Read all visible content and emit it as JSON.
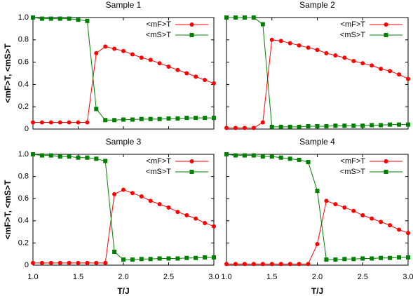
{
  "chart_data": [
    {
      "type": "line",
      "title": "Sample 1",
      "ylabel": "<mF>T, <mS>T",
      "legend": "upper right",
      "x": [
        1.0,
        1.1,
        1.2,
        1.3,
        1.4,
        1.5,
        1.6,
        1.7,
        1.8,
        1.9,
        2.0,
        2.1,
        2.2,
        2.3,
        2.4,
        2.5,
        2.6,
        2.7,
        2.8,
        2.9,
        3.0
      ],
      "series": [
        {
          "name": "<mF>T",
          "color": "#ff0000",
          "marker": "circle",
          "values": [
            0.06,
            0.06,
            0.06,
            0.06,
            0.06,
            0.06,
            0.06,
            0.68,
            0.74,
            0.72,
            0.7,
            0.67,
            0.64,
            0.62,
            0.59,
            0.56,
            0.53,
            0.5,
            0.47,
            0.44,
            0.41
          ]
        },
        {
          "name": "<mS>T",
          "color": "#008000",
          "marker": "square",
          "values": [
            1.0,
            0.99,
            0.99,
            0.99,
            0.99,
            0.98,
            0.97,
            0.18,
            0.08,
            0.08,
            0.085,
            0.085,
            0.09,
            0.09,
            0.09,
            0.095,
            0.095,
            0.1,
            0.1,
            0.1,
            0.1
          ]
        }
      ],
      "xlim": [
        1.0,
        3.0
      ],
      "xticks": [
        {
          "value": 1.0,
          "label": "1.0"
        },
        {
          "value": 1.5,
          "label": "1.5"
        },
        {
          "value": 2.0,
          "label": "2.0"
        },
        {
          "value": 2.5,
          "label": "2.5"
        },
        {
          "value": 3.0,
          "label": "3.0"
        }
      ],
      "ylim": [
        0,
        1.0
      ],
      "yticks": [
        0,
        0.2,
        0.4,
        0.6,
        0.8,
        {
          "value": 1.0,
          "label": "1.0"
        }
      ]
    },
    {
      "type": "line",
      "title": "Sample 2",
      "legend": "upper right",
      "x": [
        1.0,
        1.1,
        1.2,
        1.3,
        1.4,
        1.5,
        1.6,
        1.7,
        1.8,
        1.9,
        2.0,
        2.1,
        2.2,
        2.3,
        2.4,
        2.5,
        2.6,
        2.7,
        2.8,
        2.9,
        3.0
      ],
      "series": [
        {
          "name": "<mF>T",
          "color": "#ff0000",
          "marker": "circle",
          "values": [
            0.01,
            0.01,
            0.01,
            0.01,
            0.06,
            0.8,
            0.79,
            0.77,
            0.75,
            0.73,
            0.71,
            0.68,
            0.66,
            0.64,
            0.61,
            0.59,
            0.57,
            0.54,
            0.52,
            0.49,
            0.45
          ]
        },
        {
          "name": "<mS>T",
          "color": "#008000",
          "marker": "square",
          "values": [
            1.0,
            1.0,
            1.0,
            1.0,
            0.94,
            0.02,
            0.02,
            0.02,
            0.02,
            0.025,
            0.025,
            0.025,
            0.03,
            0.03,
            0.03,
            0.03,
            0.035,
            0.035,
            0.04,
            0.04,
            0.04
          ]
        }
      ],
      "xlim": [
        1.0,
        3.0
      ],
      "xticks": [
        {
          "value": 1.0,
          "label": "1.0"
        },
        {
          "value": 1.5,
          "label": "1.5"
        },
        {
          "value": 2.0,
          "label": "2.0"
        },
        {
          "value": 2.5,
          "label": "2.5"
        },
        {
          "value": 3.0,
          "label": "3.0"
        }
      ],
      "ylim": [
        0,
        1.0
      ],
      "yticks": [
        0,
        0.2,
        0.4,
        0.6,
        0.8,
        {
          "value": 1.0,
          "label": "1.0"
        }
      ]
    },
    {
      "type": "line",
      "title": "Sample 3",
      "ylabel": "<mF>T, <mS>T",
      "xlabel": "T/J",
      "legend": "upper right",
      "x": [
        1.0,
        1.1,
        1.2,
        1.3,
        1.4,
        1.5,
        1.6,
        1.7,
        1.8,
        1.9,
        2.0,
        2.1,
        2.2,
        2.3,
        2.4,
        2.5,
        2.6,
        2.7,
        2.8,
        2.9,
        3.0
      ],
      "series": [
        {
          "name": "<mF>T",
          "color": "#ff0000",
          "marker": "circle",
          "values": [
            0.02,
            0.02,
            0.02,
            0.02,
            0.02,
            0.02,
            0.02,
            0.02,
            0.02,
            0.64,
            0.68,
            0.65,
            0.62,
            0.58,
            0.55,
            0.52,
            0.48,
            0.45,
            0.42,
            0.38,
            0.35
          ]
        },
        {
          "name": "<mS>T",
          "color": "#008000",
          "marker": "square",
          "values": [
            1.0,
            0.99,
            0.99,
            0.98,
            0.98,
            0.97,
            0.97,
            0.96,
            0.94,
            0.12,
            0.05,
            0.05,
            0.055,
            0.055,
            0.06,
            0.06,
            0.06,
            0.065,
            0.065,
            0.07,
            0.07
          ]
        }
      ],
      "xlim": [
        1.0,
        3.0
      ],
      "xticks": [
        {
          "value": 1.0,
          "label": "1.0"
        },
        {
          "value": 1.5,
          "label": "1.5"
        },
        {
          "value": 2.0,
          "label": "2.0"
        },
        {
          "value": 2.5,
          "label": "2.5"
        },
        {
          "value": 3.0,
          "label": "3.0"
        }
      ],
      "ylim": [
        0,
        1.0
      ],
      "yticks": [
        0,
        0.2,
        0.4,
        0.6,
        0.8,
        {
          "value": 1.0,
          "label": "1.0"
        }
      ]
    },
    {
      "type": "line",
      "title": "Sample 4",
      "xlabel": "T/J",
      "legend": "upper right",
      "x": [
        1.0,
        1.1,
        1.2,
        1.3,
        1.4,
        1.5,
        1.6,
        1.7,
        1.8,
        1.9,
        2.0,
        2.1,
        2.2,
        2.3,
        2.4,
        2.5,
        2.6,
        2.7,
        2.8,
        2.9,
        3.0
      ],
      "series": [
        {
          "name": "<mF>T",
          "color": "#ff0000",
          "marker": "circle",
          "values": [
            0.01,
            0.01,
            0.01,
            0.01,
            0.01,
            0.01,
            0.01,
            0.01,
            0.01,
            0.01,
            0.19,
            0.58,
            0.55,
            0.52,
            0.49,
            0.45,
            0.42,
            0.39,
            0.36,
            0.32,
            0.29
          ]
        },
        {
          "name": "<mS>T",
          "color": "#008000",
          "marker": "square",
          "values": [
            1.0,
            0.99,
            0.99,
            0.99,
            0.98,
            0.98,
            0.97,
            0.96,
            0.95,
            0.93,
            0.67,
            0.05,
            0.05,
            0.055,
            0.055,
            0.06,
            0.06,
            0.065,
            0.065,
            0.07,
            0.07
          ]
        }
      ],
      "xlim": [
        1.0,
        3.0
      ],
      "xticks": [
        {
          "value": 1.0,
          "label": "1.0"
        },
        {
          "value": 1.5,
          "label": "1.5"
        },
        {
          "value": 2.0,
          "label": "2.0"
        },
        {
          "value": 2.5,
          "label": "2.5"
        },
        {
          "value": 3.0,
          "label": "3.0"
        }
      ],
      "ylim": [
        0,
        1.0
      ],
      "yticks": [
        0,
        0.2,
        0.4,
        0.6,
        0.8,
        {
          "value": 1.0,
          "label": "1.0"
        }
      ]
    }
  ]
}
